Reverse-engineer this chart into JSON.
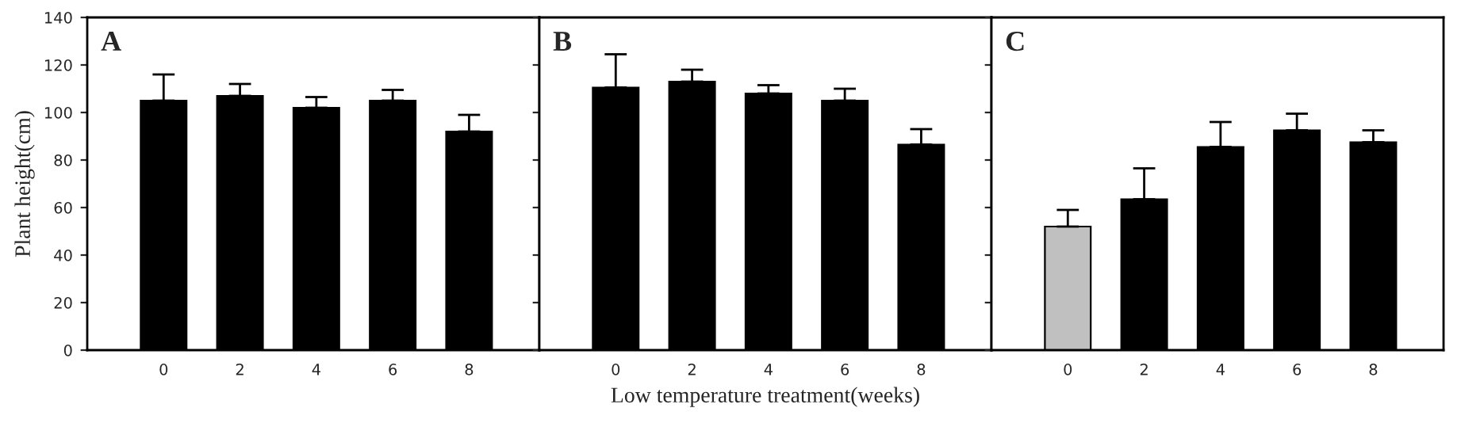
{
  "chart_data": [
    {
      "type": "bar",
      "categories": [
        "0",
        "2",
        "4",
        "6",
        "8"
      ],
      "ylabel": "Plant height(cm)",
      "annotations": [
        "A"
      ],
      "ylim": [
        0,
        140
      ],
      "yticks": [
        0,
        20,
        40,
        60,
        80,
        100,
        120,
        140
      ],
      "series": [
        {
          "colors": [
            "#000000",
            "#000000",
            "#000000",
            "#000000",
            "#000000"
          ],
          "values": [
            105,
            107,
            102,
            105,
            92
          ],
          "errors": [
            [
              105,
              116
            ],
            [
              107,
              112
            ],
            [
              102,
              106.5
            ],
            [
              105,
              109.5
            ],
            [
              92,
              99
            ]
          ]
        }
      ]
    },
    {
      "type": "bar",
      "categories": [
        "0",
        "2",
        "4",
        "6",
        "8"
      ],
      "xlabel": "Low temperature treatment(weeks)",
      "annotations": [
        "B"
      ],
      "ylim": [
        0,
        140
      ],
      "yticks": [
        0,
        20,
        40,
        60,
        80,
        100,
        120,
        140
      ],
      "tick_labels": "x",
      "series": [
        {
          "colors": [
            "#000000",
            "#000000",
            "#000000",
            "#000000",
            "#000000"
          ],
          "values": [
            110.5,
            113,
            108,
            105,
            86.5
          ],
          "errors": [
            [
              110.5,
              124.5
            ],
            [
              113,
              118
            ],
            [
              108,
              111.5
            ],
            [
              105,
              110
            ],
            [
              86.5,
              93
            ]
          ]
        }
      ]
    },
    {
      "type": "bar",
      "categories": [
        "0",
        "2",
        "4",
        "6",
        "8"
      ],
      "annotations": [
        "C"
      ],
      "ylim": [
        0,
        140
      ],
      "yticks": [
        0,
        20,
        40,
        60,
        80,
        100,
        120,
        140
      ],
      "tick_labels": "x",
      "series": [
        {
          "colors": [
            "#c0c0c0",
            "#000000",
            "#000000",
            "#000000",
            "#000000"
          ],
          "values": [
            52,
            63.5,
            85.5,
            92.5,
            87.5
          ],
          "errors": [
            [
              52,
              59
            ],
            [
              63.5,
              76.5
            ],
            [
              85.5,
              96
            ],
            [
              92.5,
              99.5
            ],
            [
              87.5,
              92.5
            ]
          ]
        }
      ]
    }
  ]
}
